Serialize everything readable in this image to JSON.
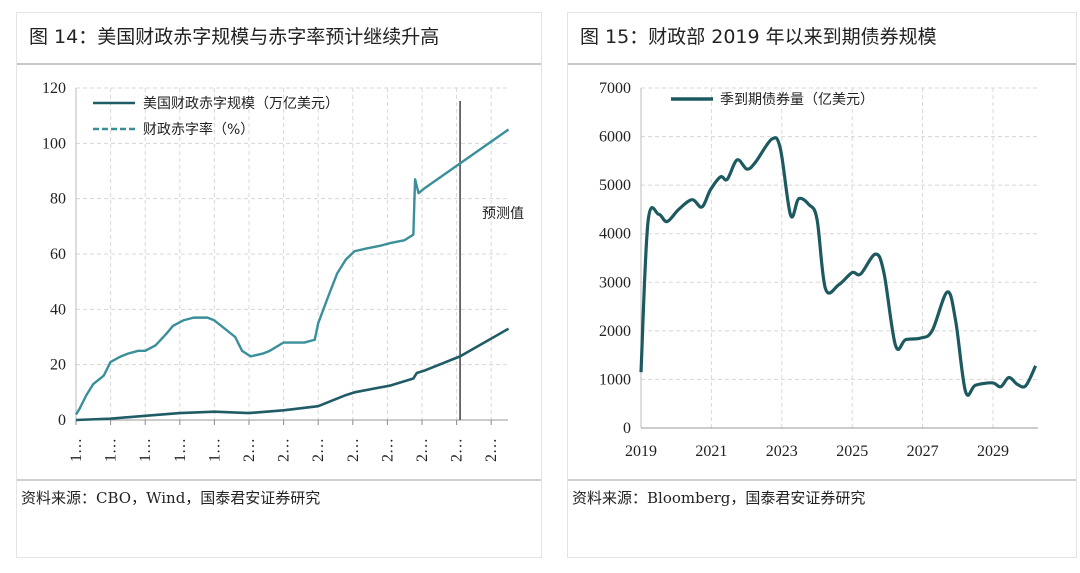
{
  "left": {
    "title": "图 14：美国财政赤字规模与赤字率预计继续升高",
    "source": "资料来源：CBO，Wind，国泰君安证券研究",
    "annotation": "预测值"
  },
  "right": {
    "title": "图 15：财政部 2019 年以来到期债券规模",
    "source": "资料来源：Bloomberg，国泰君安证券研究"
  },
  "colors": {
    "deficit": "#1f5c66",
    "rate": "#3a8f9a",
    "maturity": "#1d5a60",
    "grid": "#d8d8d8"
  },
  "chart_data": [
    {
      "type": "line",
      "ylim": [
        0,
        120
      ],
      "yticks": [
        "0",
        "20",
        "40",
        "60",
        "80",
        "100",
        "120"
      ],
      "xtick_labels": [
        "1…",
        "1…",
        "1…",
        "1…",
        "1…",
        "2…",
        "2…",
        "2…",
        "2…",
        "2…",
        "2…",
        "2…",
        "2…"
      ],
      "grid": true,
      "legend": "top-left",
      "forecast_from_tick": 11.1,
      "series": [
        {
          "name": "美国财政赤字规模（万亿美元）",
          "style": "solid",
          "x": [
            0,
            1,
            2,
            3,
            4,
            5,
            6,
            7,
            7.8,
            8.05,
            9.1,
            9.75,
            9.85,
            10.1,
            11.1,
            12.5
          ],
          "values": [
            0,
            0.5,
            1.5,
            2.5,
            3,
            2.5,
            3.5,
            5,
            9,
            10,
            12.5,
            15,
            17,
            18,
            23,
            33
          ]
        },
        {
          "name": "财政赤字率（%）",
          "style": "dashed",
          "x": [
            0,
            0.1,
            0.3,
            0.5,
            0.8,
            1.0,
            1.3,
            1.5,
            1.8,
            2.0,
            2.3,
            2.6,
            2.8,
            3.1,
            3.4,
            3.8,
            4.0,
            4.3,
            4.6,
            4.8,
            5.05,
            5.4,
            5.6,
            6.0,
            6.3,
            6.6,
            6.9,
            7.0,
            7.3,
            7.55,
            7.8,
            8.05,
            8.4,
            8.8,
            9.1,
            9.5,
            9.75,
            9.8,
            9.9,
            10.1,
            12.5
          ],
          "values": [
            2,
            4,
            9,
            13,
            16,
            21,
            23,
            24,
            25,
            25,
            27,
            31,
            34,
            36,
            37,
            37,
            36,
            33,
            30,
            25,
            23,
            24,
            25,
            28,
            28,
            28,
            29,
            35,
            45,
            53,
            58,
            61,
            62,
            63,
            64,
            65,
            67,
            87,
            82,
            84,
            105
          ]
        }
      ]
    },
    {
      "type": "line",
      "ylim": [
        0,
        7000
      ],
      "yticks": [
        "0",
        "1000",
        "2000",
        "3000",
        "4000",
        "5000",
        "6000",
        "7000"
      ],
      "xticks": [
        "2019",
        "2021",
        "2023",
        "2025",
        "2027",
        "2029"
      ],
      "grid": true,
      "legend": "top-left",
      "series": [
        {
          "name": "季到期债券量（亿美元）",
          "x": [
            2019.0,
            2019.2,
            2019.5,
            2019.74,
            2020.07,
            2020.45,
            2020.73,
            2020.97,
            2021.26,
            2021.45,
            2021.73,
            2022.01,
            2022.25,
            2022.72,
            2022.96,
            2023.25,
            2023.48,
            2023.77,
            2024.0,
            2024.24,
            2024.62,
            2025.0,
            2025.24,
            2025.66,
            2025.9,
            2026.23,
            2026.52,
            2026.94,
            2027.27,
            2027.7,
            2027.94,
            2028.22,
            2028.5,
            2028.98,
            2029.22,
            2029.45,
            2029.69,
            2029.93,
            2030.21
          ],
          "values": [
            1150,
            4250,
            4400,
            4250,
            4500,
            4700,
            4550,
            4900,
            5170,
            5120,
            5520,
            5330,
            5470,
            5950,
            5750,
            4380,
            4720,
            4600,
            4300,
            2870,
            2950,
            3200,
            3170,
            3580,
            3200,
            1700,
            1820,
            1850,
            2000,
            2800,
            2200,
            750,
            880,
            930,
            850,
            1040,
            900,
            870,
            1280
          ]
        }
      ]
    }
  ]
}
